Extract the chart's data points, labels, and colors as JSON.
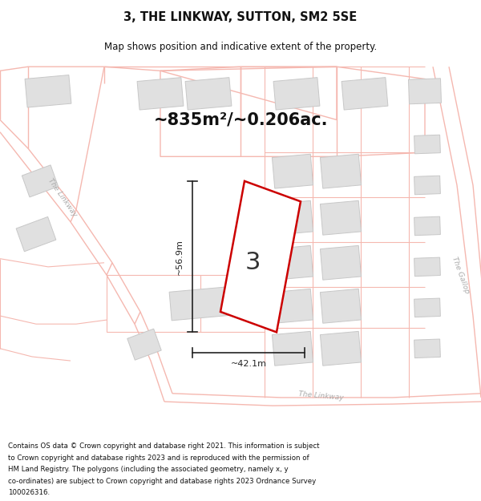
{
  "title": "3, THE LINKWAY, SUTTON, SM2 5SE",
  "subtitle": "Map shows position and indicative extent of the property.",
  "area_text": "~835m²/~0.206ac.",
  "property_number": "3",
  "dim_width": "~42.1m",
  "dim_height": "~56.9m",
  "footer_lines": [
    "Contains OS data © Crown copyright and database right 2021. This information is subject",
    "to Crown copyright and database rights 2023 and is reproduced with the permission of",
    "HM Land Registry. The polygons (including the associated geometry, namely x, y",
    "co-ordinates) are subject to Crown copyright and database rights 2023 Ordnance Survey",
    "100026316."
  ],
  "bg_color": "#f7f7f7",
  "map_bg": "#ffffff",
  "parcel_color": "#f5b8b0",
  "building_fill": "#e0e0e0",
  "building_stroke": "#c8c8c8",
  "property_stroke": "#cc0000",
  "property_fill": "#ffffff",
  "road_label_color": "#aaaaaa",
  "dim_color": "#222222",
  "title_color": "#111111",
  "footer_color": "#111111"
}
